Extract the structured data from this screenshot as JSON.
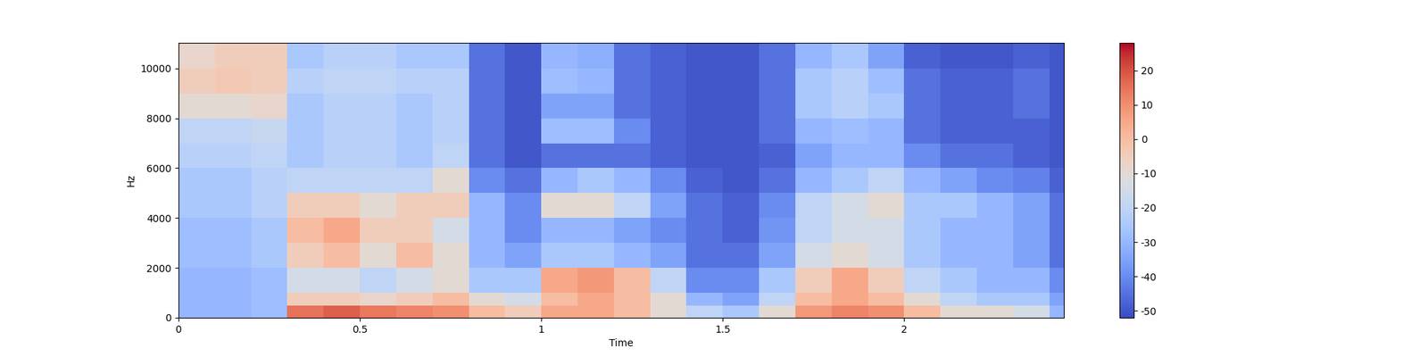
{
  "chart_data": {
    "type": "heatmap",
    "x_label": "Time",
    "y_label": "Hz",
    "x_edges": [
      0,
      0.1,
      0.2,
      0.3,
      0.4,
      0.5,
      0.6,
      0.7,
      0.8,
      0.9,
      1.0,
      1.1,
      1.2,
      1.3,
      1.4,
      1.5,
      1.6,
      1.7,
      1.8,
      1.9,
      2.0,
      2.1,
      2.2,
      2.3,
      2.4,
      2.44
    ],
    "y_edges": [
      0,
      500,
      1000,
      2000,
      3000,
      4000,
      5000,
      6000,
      7000,
      8000,
      9000,
      10000,
      11025
    ],
    "cells": [
      [
        -30,
        -30,
        -28,
        15,
        18,
        14,
        12,
        10,
        0,
        -5,
        5,
        5,
        0,
        -10,
        -20,
        -25,
        -10,
        8,
        12,
        10,
        0,
        -10,
        -10,
        -15,
        -30
      ],
      [
        -30,
        -30,
        -28,
        -5,
        -5,
        -8,
        -5,
        0,
        -10,
        -15,
        0,
        5,
        0,
        -10,
        -30,
        -35,
        -20,
        0,
        5,
        0,
        -10,
        -20,
        -25,
        -25,
        -35
      ],
      [
        -30,
        -30,
        -28,
        -15,
        -15,
        -20,
        -15,
        -10,
        -25,
        -25,
        5,
        8,
        0,
        -20,
        -40,
        -40,
        -25,
        -5,
        5,
        -5,
        -20,
        -25,
        -30,
        -30,
        -40
      ],
      [
        -28,
        -28,
        -25,
        -5,
        0,
        -10,
        0,
        -10,
        -30,
        -35,
        -25,
        -25,
        -30,
        -35,
        -45,
        -45,
        -35,
        -15,
        -10,
        -15,
        -25,
        -30,
        -30,
        -35,
        -45
      ],
      [
        -28,
        -28,
        -25,
        0,
        5,
        -5,
        -5,
        -15,
        -30,
        -40,
        -30,
        -30,
        -35,
        -40,
        -45,
        -48,
        -38,
        -20,
        -15,
        -15,
        -25,
        -30,
        -30,
        -35,
        -45
      ],
      [
        -25,
        -25,
        -22,
        -5,
        -5,
        -10,
        -5,
        -5,
        -30,
        -40,
        -10,
        -10,
        -20,
        -35,
        -45,
        -48,
        -40,
        -20,
        -15,
        -10,
        -25,
        -25,
        -30,
        -35,
        -45
      ],
      [
        -25,
        -25,
        -22,
        -20,
        -20,
        -20,
        -20,
        -10,
        -40,
        -45,
        -30,
        -25,
        -30,
        -40,
        -48,
        -50,
        -45,
        -30,
        -25,
        -20,
        -30,
        -35,
        -40,
        -42,
        -48
      ],
      [
        -22,
        -22,
        -20,
        -25,
        -22,
        -22,
        -25,
        -20,
        -45,
        -50,
        -45,
        -45,
        -45,
        -48,
        -50,
        -50,
        -48,
        -35,
        -30,
        -30,
        -40,
        -45,
        -45,
        -48,
        -50
      ],
      [
        -20,
        -20,
        -18,
        -25,
        -22,
        -22,
        -25,
        -22,
        -45,
        -50,
        -28,
        -28,
        -40,
        -48,
        -50,
        -50,
        -45,
        -30,
        -28,
        -30,
        -45,
        -48,
        -48,
        -48,
        -50
      ],
      [
        -10,
        -10,
        -8,
        -25,
        -22,
        -22,
        -25,
        -22,
        -45,
        -50,
        -35,
        -35,
        -45,
        -48,
        -50,
        -50,
        -45,
        -25,
        -22,
        -25,
        -45,
        -48,
        -48,
        -45,
        -50
      ],
      [
        -5,
        -3,
        -5,
        -22,
        -20,
        -20,
        -22,
        -22,
        -45,
        -50,
        -28,
        -30,
        -45,
        -48,
        -50,
        -50,
        -45,
        -25,
        -22,
        -28,
        -45,
        -48,
        -48,
        -45,
        -50
      ],
      [
        -8,
        -5,
        -5,
        -25,
        -22,
        -22,
        -25,
        -25,
        -45,
        -50,
        -30,
        -32,
        -45,
        -48,
        -50,
        -50,
        -45,
        -30,
        -25,
        -35,
        -48,
        -50,
        -50,
        -48,
        -50
      ]
    ],
    "xlim": [
      0,
      2.44
    ],
    "ylim": [
      0,
      11025
    ],
    "xticks": [
      0,
      0.5,
      1,
      1.5,
      2
    ],
    "yticks": [
      0,
      2000,
      4000,
      6000,
      8000,
      10000
    ],
    "colorbar_range": [
      -52,
      28
    ],
    "colorbar_ticks": [
      -50,
      -40,
      -30,
      -20,
      -10,
      0,
      10,
      20
    ]
  }
}
